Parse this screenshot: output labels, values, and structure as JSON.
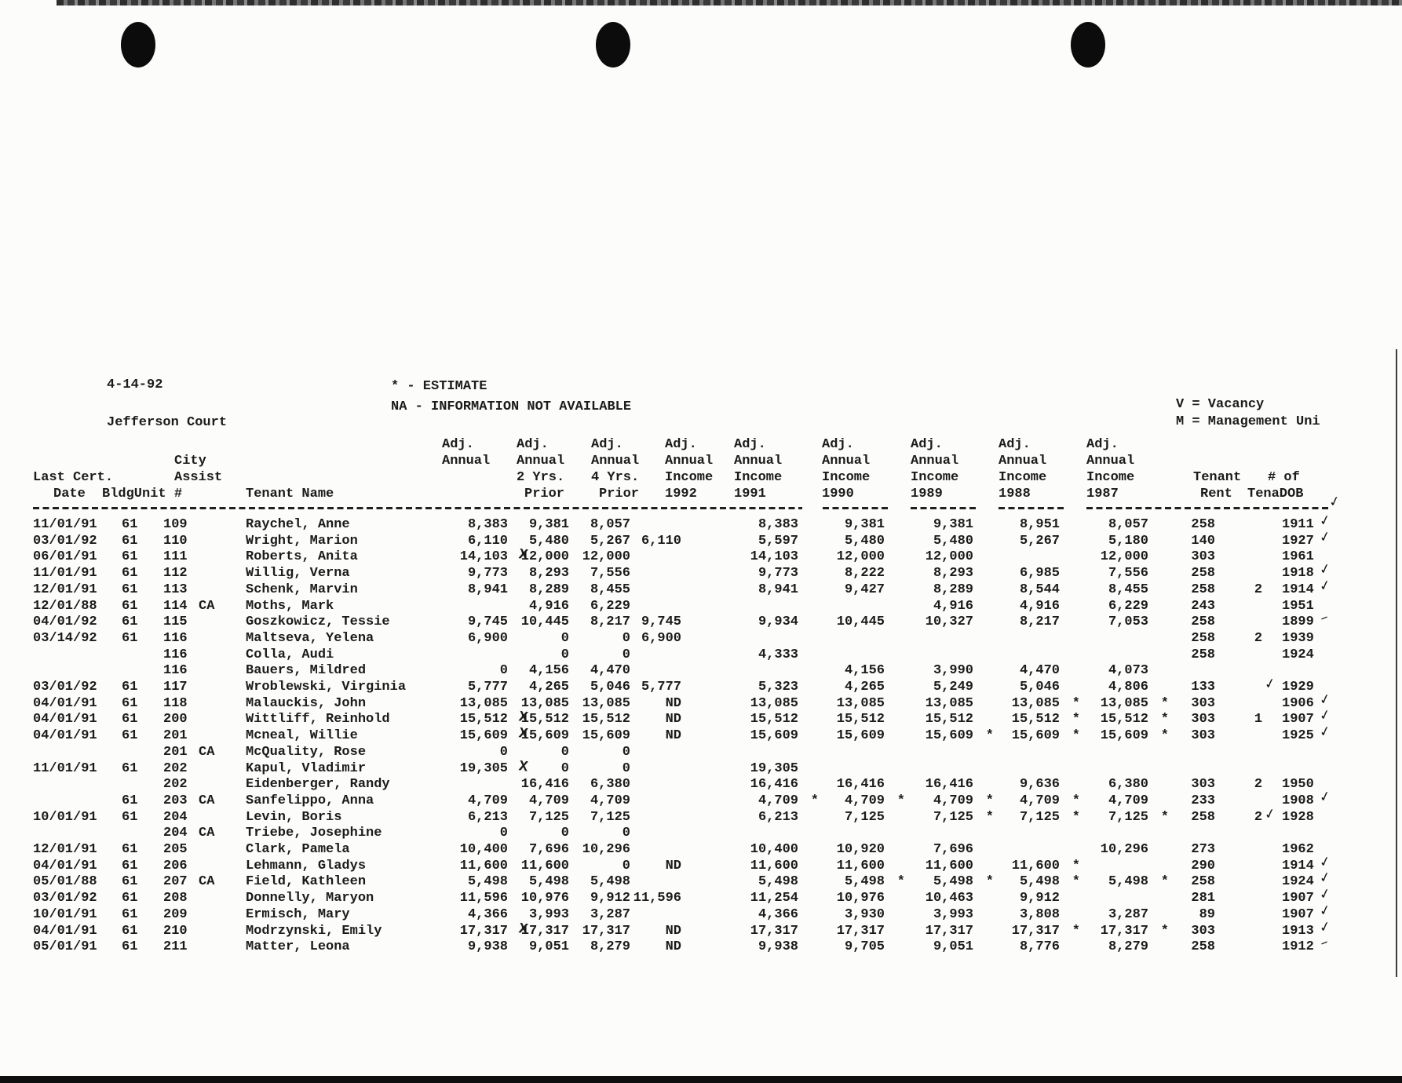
{
  "document": {
    "stamp_date": "4-14-92",
    "property_name": "Jefferson Court",
    "legend": {
      "estimate": "* - ESTIMATE",
      "not_available": "NA - INFORMATION NOT AVAILABLE",
      "vacancy": "V = Vacancy",
      "management": "M = Management Uni"
    },
    "marks": {
      "check": "✓",
      "dash": "–",
      "x_mark": "X",
      "star": "*"
    }
  },
  "table": {
    "header_labels": [
      {
        "text": "Adj.",
        "col": "adj",
        "line": 1
      },
      {
        "text": "Adj.",
        "col": "p2",
        "line": 1
      },
      {
        "text": "Adj.",
        "col": "p4",
        "line": 1
      },
      {
        "text": "Adj.",
        "col": "i92",
        "line": 1
      },
      {
        "text": "Adj.",
        "col": "i91",
        "line": 1
      },
      {
        "text": "Adj.",
        "col": "i90",
        "line": 1
      },
      {
        "text": "Adj.",
        "col": "i89",
        "line": 1
      },
      {
        "text": "Adj.",
        "col": "i88",
        "line": 1
      },
      {
        "text": "Adj.",
        "col": "i87",
        "line": 1
      },
      {
        "text": "City",
        "col": "city",
        "line": 2
      },
      {
        "text": "Annual",
        "col": "adj",
        "line": 2
      },
      {
        "text": "Annual",
        "col": "p2",
        "line": 2
      },
      {
        "text": "Annual",
        "col": "p4",
        "line": 2
      },
      {
        "text": "Annual",
        "col": "i92",
        "line": 2
      },
      {
        "text": "Annual",
        "col": "i91",
        "line": 2
      },
      {
        "text": "Annual",
        "col": "i90",
        "line": 2
      },
      {
        "text": "Annual",
        "col": "i89",
        "line": 2
      },
      {
        "text": "Annual",
        "col": "i88",
        "line": 2
      },
      {
        "text": "Annual",
        "col": "i87",
        "line": 2
      },
      {
        "text": "Last Cert.",
        "col": "lastcert",
        "line": 3
      },
      {
        "text": "Assist",
        "col": "city",
        "line": 3
      },
      {
        "text": "2 Yrs.",
        "col": "p2",
        "line": 3
      },
      {
        "text": "4 Yrs.",
        "col": "p4",
        "line": 3
      },
      {
        "text": "Income",
        "col": "i92",
        "line": 3
      },
      {
        "text": "Income",
        "col": "i91",
        "line": 3
      },
      {
        "text": "Income",
        "col": "i90",
        "line": 3
      },
      {
        "text": "Income",
        "col": "i89",
        "line": 3
      },
      {
        "text": "Income",
        "col": "i88",
        "line": 3
      },
      {
        "text": "Income",
        "col": "i87",
        "line": 3
      },
      {
        "text": "Tenant",
        "col": "tenant",
        "line": 3
      },
      {
        "text": "# of",
        "col": "numof",
        "line": 3
      },
      {
        "text": "Date",
        "col": "dateind",
        "line": 4
      },
      {
        "text": "BldgUnit #",
        "col": "bldgunit",
        "line": 4
      },
      {
        "text": "Tenant Name",
        "col": "tenantname",
        "line": 4
      },
      {
        "text": "Prior",
        "col": "p2i",
        "line": 4
      },
      {
        "text": "Prior",
        "col": "p4i",
        "line": 4
      },
      {
        "text": "1992",
        "col": "i92",
        "line": 4
      },
      {
        "text": "1991",
        "col": "i91",
        "line": 4
      },
      {
        "text": "1990",
        "col": "i90",
        "line": 4
      },
      {
        "text": "1989",
        "col": "i89",
        "line": 4
      },
      {
        "text": "1988",
        "col": "i88",
        "line": 4
      },
      {
        "text": "1987",
        "col": "i87",
        "line": 4
      },
      {
        "text": "Rent",
        "col": "rentlbl",
        "line": 4
      },
      {
        "text": "TenaDOB",
        "col": "tenadob",
        "line": 4
      }
    ],
    "rows": [
      {
        "date": "11/01/91",
        "bldg": "61",
        "unit": "109",
        "name": "Raychel, Anne",
        "adj": "8,383",
        "p2": "9,381",
        "p4": "8,057",
        "i91": "8,383",
        "i90": "9,381",
        "i89": "9,381",
        "i88": "8,951",
        "i87": "8,057",
        "rent": "258",
        "dob": "1911",
        "dob_mark": "check"
      },
      {
        "date": "03/01/92",
        "bldg": "61",
        "unit": "110",
        "name": "Wright, Marion",
        "adj": "6,110",
        "p2": "5,480",
        "p4": "5,267",
        "i92": "6,110",
        "i91": "5,597",
        "i90": "5,480",
        "i89": "5,480",
        "i88": "5,267",
        "i87": "5,180",
        "rent": "140",
        "dob": "1927",
        "dob_mark": "check"
      },
      {
        "date": "06/01/91",
        "bldg": "61",
        "unit": "111",
        "name": "Roberts, Anita",
        "adj": "14,103",
        "adjx": true,
        "p2": "12,000",
        "p4": "12,000",
        "i91": "14,103",
        "i90": "12,000",
        "i89": "12,000",
        "i87": "12,000",
        "rent": "303",
        "dob": "1961"
      },
      {
        "date": "11/01/91",
        "bldg": "61",
        "unit": "112",
        "name": "Willig, Verna",
        "adj": "9,773",
        "p2": "8,293",
        "p4": "7,556",
        "i91": "9,773",
        "i90": "8,222",
        "i89": "8,293",
        "i88": "6,985",
        "i87": "7,556",
        "rent": "258",
        "dob": "1918",
        "dob_mark": "check"
      },
      {
        "date": "12/01/91",
        "bldg": "61",
        "unit": "113",
        "name": "Schenk, Marvin",
        "adj": "8,941",
        "p2": "8,289",
        "p4": "8,455",
        "i91": "8,941",
        "i90": "9,427",
        "i89": "8,289",
        "i88": "8,544",
        "i87": "8,455",
        "rent": "258",
        "num": "2",
        "dob": "1914",
        "dob_mark": "check"
      },
      {
        "date": "12/01/88",
        "bldg": "61",
        "unit": "114",
        "ca": "CA",
        "name": "Moths, Mark",
        "p2": "4,916",
        "p4": "6,229",
        "i89": "4,916",
        "i88": "4,916",
        "i87": "6,229",
        "rent": "243",
        "dob": "1951"
      },
      {
        "date": "04/01/92",
        "bldg": "61",
        "unit": "115",
        "name": "Goszkowicz, Tessie",
        "adj": "9,745",
        "p2": "10,445",
        "p4": "8,217",
        "i92": "9,745",
        "i91": "9,934",
        "i90": "10,445",
        "i89": "10,327",
        "i88": "8,217",
        "i87": "7,053",
        "rent": "258",
        "dob": "1899",
        "dob_mark": "dash"
      },
      {
        "date": "03/14/92",
        "bldg": "61",
        "unit": "116",
        "name": "Maltseva, Yelena",
        "adj": "6,900",
        "p2": "0",
        "p4": "0",
        "i92": "6,900",
        "rent": "258",
        "num": "2",
        "dob": "1939"
      },
      {
        "unit": "116",
        "name": "Colla, Audi",
        "p2": "0",
        "p4": "0",
        "i91": "4,333",
        "rent": "258",
        "dob": "1924"
      },
      {
        "unit": "116",
        "name": "Bauers, Mildred",
        "adj": "0",
        "p2": "4,156",
        "p4": "4,470",
        "i90": "4,156",
        "i89": "3,990",
        "i88": "4,470",
        "i87": "4,073"
      },
      {
        "date": "03/01/92",
        "bldg": "61",
        "unit": "117",
        "name": "Wroblewski, Virginia",
        "adj": "5,777",
        "p2": "4,265",
        "p4": "5,046",
        "i92": "5,777",
        "i91": "5,323",
        "i90": "4,265",
        "i89": "5,249",
        "i88": "5,046",
        "i87": "4,806",
        "rent": "133",
        "num_mark": "check",
        "dob": "1929"
      },
      {
        "date": "04/01/91",
        "bldg": "61",
        "unit": "118",
        "name": "Malauckis, John",
        "adj": "13,085",
        "p2": "13,085",
        "p4": "13,085",
        "i92": "ND",
        "i91": "13,085",
        "i90": "13,085",
        "i89": "13,085",
        "i88": "13,085",
        "s88": true,
        "i87": "13,085",
        "s87": true,
        "rent": "303",
        "dob": "1906",
        "dob_mark": "check"
      },
      {
        "date": "04/01/91",
        "bldg": "61",
        "unit": "200",
        "name": "Wittliff, Reinhold",
        "adj": "15,512",
        "adjx": true,
        "p2": "15,512",
        "p4": "15,512",
        "i92": "ND",
        "i91": "15,512",
        "i90": "15,512",
        "i89": "15,512",
        "i88": "15,512",
        "s88": true,
        "i87": "15,512",
        "s87": true,
        "rent": "303",
        "num": "1",
        "dob": "1907",
        "dob_mark": "check"
      },
      {
        "date": "04/01/91",
        "bldg": "61",
        "unit": "201",
        "name": "Mcneal, Willie",
        "adj": "15,609",
        "adjx": true,
        "p2": "15,609",
        "p4": "15,609",
        "i92": "ND",
        "i91": "15,609",
        "i90": "15,609",
        "i89": "15,609",
        "s89": true,
        "i88": "15,609",
        "s88": true,
        "i87": "15,609",
        "s87": true,
        "rent": "303",
        "dob": "1925",
        "dob_mark": "check"
      },
      {
        "unit": "201",
        "ca": "CA",
        "name": "McQuality, Rose",
        "adj": "0",
        "p2": "0",
        "p4": "0"
      },
      {
        "date": "11/01/91",
        "bldg": "61",
        "unit": "202",
        "name": "Kapul, Vladimir",
        "adj": "19,305",
        "adjx": true,
        "p2": "0",
        "p4": "0",
        "i91": "19,305"
      },
      {
        "unit": "202",
        "name": "Eidenberger, Randy",
        "p2": "16,416",
        "p4": "6,380",
        "i91": "16,416",
        "i90": "16,416",
        "i89": "16,416",
        "i88": "9,636",
        "i87": "6,380",
        "rent": "303",
        "num": "2",
        "dob": "1950"
      },
      {
        "bldg": "61",
        "unit": "203",
        "ca": "CA",
        "name": "Sanfelippo, Anna",
        "adj": "4,709",
        "p2": "4,709",
        "p4": "4,709",
        "i91": "4,709",
        "s91": true,
        "i90": "4,709",
        "s90": true,
        "i89": "4,709",
        "s89": true,
        "i88": "4,709",
        "s88": true,
        "i87": "4,709",
        "rent": "233",
        "dob": "1908",
        "dob_mark": "check"
      },
      {
        "date": "10/01/91",
        "bldg": "61",
        "unit": "204",
        "name": "Levin, Boris",
        "adj": "6,213",
        "p2": "7,125",
        "p4": "7,125",
        "i91": "6,213",
        "i90": "7,125",
        "i89": "7,125",
        "s89": true,
        "i88": "7,125",
        "s88": true,
        "i87": "7,125",
        "s87": true,
        "rent": "258",
        "num": "2",
        "num_mark": "check",
        "dob": "1928"
      },
      {
        "unit": "204",
        "ca": "CA",
        "name": "Triebe, Josephine",
        "adj": "0",
        "p2": "0",
        "p4": "0"
      },
      {
        "date": "12/01/91",
        "bldg": "61",
        "unit": "205",
        "name": "Clark, Pamela",
        "adj": "10,400",
        "p2": "7,696",
        "p4": "10,296",
        "i91": "10,400",
        "i90": "10,920",
        "i89": "7,696",
        "i87": "10,296",
        "rent": "273",
        "dob": "1962"
      },
      {
        "date": "04/01/91",
        "bldg": "61",
        "unit": "206",
        "name": "Lehmann, Gladys",
        "adj": "11,600",
        "p2": "11,600",
        "p4": "0",
        "i92": "ND",
        "i91": "11,600",
        "i90": "11,600",
        "i89": "11,600",
        "i88": "11,600",
        "s88": true,
        "rent": "290",
        "dob": "1914",
        "dob_mark": "check"
      },
      {
        "date": "05/01/88",
        "bldg": "61",
        "unit": "207",
        "ca": "CA",
        "name": "Field, Kathleen",
        "adj": "5,498",
        "p2": "5,498",
        "p4": "5,498",
        "i91": "5,498",
        "i90": "5,498",
        "s90": true,
        "i89": "5,498",
        "s89": true,
        "i88": "5,498",
        "s88": true,
        "i87": "5,498",
        "s87": true,
        "rent": "258",
        "dob": "1924",
        "dob_mark": "check"
      },
      {
        "date": "03/01/92",
        "bldg": "61",
        "unit": "208",
        "name": "Donnelly, Maryon",
        "adj": "11,596",
        "p2": "10,976",
        "p4": "9,912",
        "i92": "11,596",
        "i91": "11,254",
        "i90": "10,976",
        "i89": "10,463",
        "i88": "9,912",
        "rent": "281",
        "dob": "1907",
        "dob_mark": "check"
      },
      {
        "date": "10/01/91",
        "bldg": "61",
        "unit": "209",
        "name": "Ermisch, Mary",
        "adj": "4,366",
        "p2": "3,993",
        "p4": "3,287",
        "i91": "4,366",
        "i90": "3,930",
        "i89": "3,993",
        "i88": "3,808",
        "i87": "3,287",
        "rent": "89",
        "dob": "1907",
        "dob_mark": "check"
      },
      {
        "date": "04/01/91",
        "bldg": "61",
        "unit": "210",
        "name": "Modrzynski, Emily",
        "adj": "17,317",
        "adjx": true,
        "p2": "17,317",
        "p4": "17,317",
        "i92": "ND",
        "i91": "17,317",
        "i90": "17,317",
        "i89": "17,317",
        "i88": "17,317",
        "s88": true,
        "i87": "17,317",
        "s87": true,
        "rent": "303",
        "dob": "1913",
        "dob_mark": "check"
      },
      {
        "date": "05/01/91",
        "bldg": "61",
        "unit": "211",
        "name": "Matter, Leona",
        "adj": "9,938",
        "p2": "9,051",
        "p4": "8,279",
        "i92": "ND",
        "i91": "9,938",
        "i90": "9,705",
        "i89": "9,051",
        "i88": "8,776",
        "i87": "8,279",
        "rent": "258",
        "dob": "1912",
        "dob_mark": "dash"
      }
    ]
  }
}
